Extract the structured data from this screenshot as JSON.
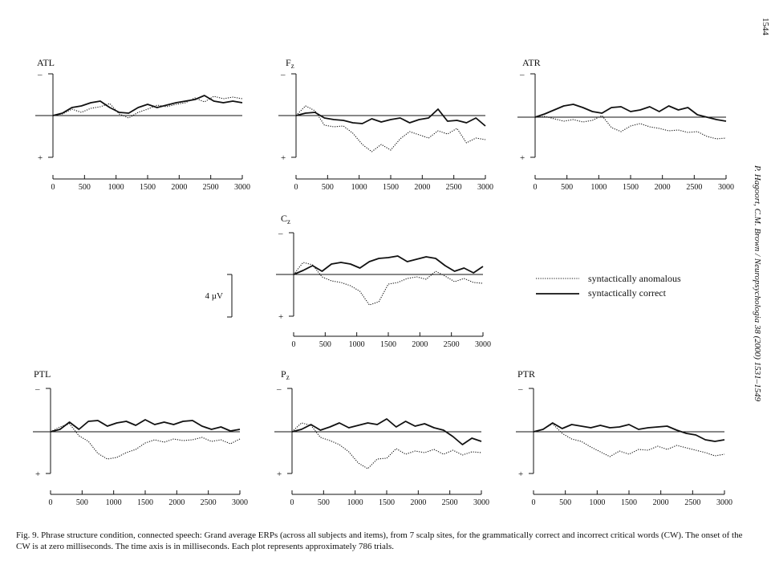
{
  "page_number": "1544",
  "running_head": "P. Hagoort, C.M. Brown / Neuropsychologia 38 (2000) 1531–1549",
  "caption": "Fig. 9. Phrase structure condition, connected speech: Grand average ERPs (across all subjects and items), from 7 scalp sites, for the grammatically correct and incorrect critical words (CW). The onset of the CW is at zero milliseconds. The time axis is in milliseconds. Each plot represents approximately 786 trials.",
  "scale_bar_label": "4 µV",
  "polarity_minus": "–",
  "polarity_plus": "+",
  "legend": {
    "anomalous": "syntactically anomalous",
    "correct": "syntactically correct"
  },
  "chart_data": [
    {
      "type": "line",
      "label": "ATL",
      "sub": "",
      "x": [
        0,
        150,
        300,
        450,
        600,
        750,
        900,
        1050,
        1200,
        1350,
        1500,
        1650,
        1800,
        1950,
        2100,
        2250,
        2400,
        2550,
        2700,
        2850,
        3000
      ],
      "xlim": [
        0,
        3000
      ],
      "ylim": [
        -5,
        5
      ],
      "x_ticks": [
        "0",
        "500",
        "1000",
        "1500",
        "2000",
        "2500",
        "3000"
      ],
      "series": [
        {
          "name": "syntactically correct",
          "style": "solid",
          "values": [
            0,
            0.3,
            1,
            1.2,
            1.6,
            1.8,
            1,
            0.4,
            0.3,
            1,
            1.4,
            1,
            1.3,
            1.6,
            1.8,
            2,
            2.5,
            1.8,
            1.6,
            1.8,
            1.6
          ]
        },
        {
          "name": "syntactically anomalous",
          "style": "dotted",
          "values": [
            0,
            0.2,
            0.8,
            0.4,
            0.9,
            1.1,
            1.5,
            0.2,
            -0.3,
            0.4,
            0.8,
            1.3,
            1.1,
            1.4,
            1.6,
            2.2,
            1.7,
            2.4,
            2.1,
            2.3,
            2.1
          ]
        }
      ]
    },
    {
      "type": "line",
      "label": "F",
      "sub": "z",
      "x": [
        0,
        150,
        300,
        450,
        600,
        750,
        900,
        1050,
        1200,
        1350,
        1500,
        1650,
        1800,
        1950,
        2100,
        2250,
        2400,
        2550,
        2700,
        2850,
        3000
      ],
      "xlim": [
        0,
        3000
      ],
      "ylim": [
        -5,
        5
      ],
      "x_ticks": [
        "0",
        "500",
        "1000",
        "1500",
        "2000",
        "2500",
        "3000"
      ],
      "series": [
        {
          "name": "syntactically correct",
          "style": "solid",
          "values": [
            0,
            0.3,
            0.4,
            -0.3,
            -0.5,
            -0.6,
            -0.9,
            -1,
            -0.4,
            -0.8,
            -0.5,
            -0.3,
            -0.9,
            -0.5,
            -0.3,
            0.8,
            -0.7,
            -0.6,
            -0.9,
            -0.3,
            -1.3
          ]
        },
        {
          "name": "syntactically anomalous",
          "style": "dotted",
          "values": [
            0,
            1.2,
            0.6,
            -1.2,
            -1.4,
            -1.3,
            -2.2,
            -3.6,
            -4.5,
            -3.6,
            -4.3,
            -2.9,
            -2,
            -2.4,
            -2.8,
            -1.9,
            -2.3,
            -1.6,
            -3.4,
            -2.8,
            -3
          ]
        }
      ]
    },
    {
      "type": "line",
      "label": "ATR",
      "sub": "",
      "x": [
        0,
        150,
        300,
        450,
        600,
        750,
        900,
        1050,
        1200,
        1350,
        1500,
        1650,
        1800,
        1950,
        2100,
        2250,
        2400,
        2550,
        2700,
        2850,
        3000
      ],
      "xlim": [
        0,
        3000
      ],
      "ylim": [
        -5,
        5
      ],
      "x_ticks": [
        "0",
        "500",
        "1000",
        "1500",
        "2000",
        "2500",
        "3000"
      ],
      "series": [
        {
          "name": "syntactically correct",
          "style": "solid",
          "values": [
            0,
            0.4,
            0.9,
            1.4,
            1.6,
            1.2,
            0.7,
            0.5,
            1.2,
            1.3,
            0.7,
            0.9,
            1.3,
            0.7,
            1.4,
            0.9,
            1.2,
            0.3,
            0,
            -0.3,
            -0.5
          ]
        },
        {
          "name": "syntactically anomalous",
          "style": "dotted",
          "values": [
            0,
            0.1,
            -0.2,
            -0.5,
            -0.3,
            -0.6,
            -0.4,
            0.2,
            -1.3,
            -1.8,
            -1.1,
            -0.8,
            -1.2,
            -1.4,
            -1.7,
            -1.6,
            -1.9,
            -1.8,
            -2.4,
            -2.7,
            -2.6
          ]
        }
      ]
    },
    {
      "type": "line",
      "label": "C",
      "sub": "z",
      "x": [
        0,
        150,
        300,
        450,
        600,
        750,
        900,
        1050,
        1200,
        1350,
        1500,
        1650,
        1800,
        1950,
        2100,
        2250,
        2400,
        2550,
        2700,
        2850,
        3000
      ],
      "xlim": [
        0,
        3000
      ],
      "ylim": [
        -5,
        5
      ],
      "x_ticks": [
        "0",
        "500",
        "1000",
        "1500",
        "2000",
        "2500",
        "3000"
      ],
      "series": [
        {
          "name": "syntactically correct",
          "style": "solid",
          "values": [
            0,
            0.5,
            1.1,
            0.4,
            1.3,
            1.5,
            1.3,
            0.8,
            1.6,
            2,
            2.1,
            2.3,
            1.6,
            1.9,
            2.2,
            2,
            1.1,
            0.4,
            0.8,
            0.2,
            1
          ]
        },
        {
          "name": "syntactically anomalous",
          "style": "dotted",
          "values": [
            0,
            1.5,
            1.2,
            -0.3,
            -0.8,
            -1,
            -1.4,
            -2.1,
            -3.8,
            -3.4,
            -1.2,
            -1,
            -0.5,
            -0.3,
            -0.6,
            0.4,
            -0.2,
            -0.9,
            -0.5,
            -1,
            -1.1
          ]
        }
      ]
    },
    {
      "type": "line",
      "label": "PTL",
      "sub": "",
      "x": [
        0,
        150,
        300,
        450,
        600,
        750,
        900,
        1050,
        1200,
        1350,
        1500,
        1650,
        1800,
        1950,
        2100,
        2250,
        2400,
        2550,
        2700,
        2850,
        3000
      ],
      "xlim": [
        0,
        3000
      ],
      "ylim": [
        -5,
        5
      ],
      "x_ticks": [
        "0",
        "500",
        "1000",
        "1500",
        "2000",
        "2500",
        "3000"
      ],
      "series": [
        {
          "name": "syntactically correct",
          "style": "solid",
          "values": [
            0,
            0.3,
            1.2,
            0.3,
            1.3,
            1.4,
            0.7,
            1.1,
            1.3,
            0.8,
            1.5,
            0.9,
            1.2,
            0.9,
            1.3,
            1.4,
            0.7,
            0.3,
            0.6,
            0.1,
            0.3
          ]
        },
        {
          "name": "syntactically anomalous",
          "style": "dotted",
          "values": [
            0,
            0.6,
            1,
            -0.5,
            -1.2,
            -2.7,
            -3.4,
            -3.2,
            -2.6,
            -2.2,
            -1.4,
            -1,
            -1.3,
            -0.9,
            -1.1,
            -1,
            -0.7,
            -1.2,
            -1,
            -1.5,
            -0.9
          ]
        }
      ]
    },
    {
      "type": "line",
      "label": "P",
      "sub": "z",
      "x": [
        0,
        150,
        300,
        450,
        600,
        750,
        900,
        1050,
        1200,
        1350,
        1500,
        1650,
        1800,
        1950,
        2100,
        2250,
        2400,
        2550,
        2700,
        2850,
        3000
      ],
      "xlim": [
        0,
        3000
      ],
      "ylim": [
        -5,
        5
      ],
      "x_ticks": [
        "0",
        "500",
        "1000",
        "1500",
        "2000",
        "2500",
        "3000"
      ],
      "series": [
        {
          "name": "syntactically correct",
          "style": "solid",
          "values": [
            0,
            0.3,
            0.9,
            0.2,
            0.6,
            1.1,
            0.5,
            0.8,
            1.1,
            0.9,
            1.6,
            0.6,
            1.3,
            0.7,
            1,
            0.5,
            0.2,
            -0.6,
            -1.6,
            -0.8,
            -1.2
          ]
        },
        {
          "name": "syntactically anomalous",
          "style": "dotted",
          "values": [
            0,
            1.1,
            0.8,
            -0.7,
            -1.1,
            -1.6,
            -2.5,
            -3.9,
            -4.6,
            -3.4,
            -3.3,
            -2.1,
            -2.8,
            -2.4,
            -2.6,
            -2.2,
            -2.8,
            -2.3,
            -2.9,
            -2.5,
            -2.6
          ]
        }
      ]
    },
    {
      "type": "line",
      "label": "PTR",
      "sub": "",
      "x": [
        0,
        150,
        300,
        450,
        600,
        750,
        900,
        1050,
        1200,
        1350,
        1500,
        1650,
        1800,
        1950,
        2100,
        2250,
        2400,
        2550,
        2700,
        2850,
        3000
      ],
      "xlim": [
        0,
        3000
      ],
      "ylim": [
        -5,
        5
      ],
      "x_ticks": [
        "0",
        "500",
        "1000",
        "1500",
        "2000",
        "2500",
        "3000"
      ],
      "series": [
        {
          "name": "syntactically correct",
          "style": "solid",
          "values": [
            0,
            0.3,
            1.1,
            0.4,
            0.9,
            0.7,
            0.5,
            0.8,
            0.5,
            0.6,
            0.9,
            0.3,
            0.5,
            0.6,
            0.7,
            0.2,
            -0.2,
            -0.4,
            -1,
            -1.2,
            -1
          ]
        },
        {
          "name": "syntactically anomalous",
          "style": "dotted",
          "values": [
            0,
            0.3,
            1,
            -0.2,
            -0.9,
            -1.2,
            -1.9,
            -2.5,
            -3.1,
            -2.4,
            -2.8,
            -2.2,
            -2.3,
            -1.8,
            -2.2,
            -1.7,
            -2,
            -2.3,
            -2.6,
            -3,
            -2.8
          ]
        }
      ]
    }
  ]
}
